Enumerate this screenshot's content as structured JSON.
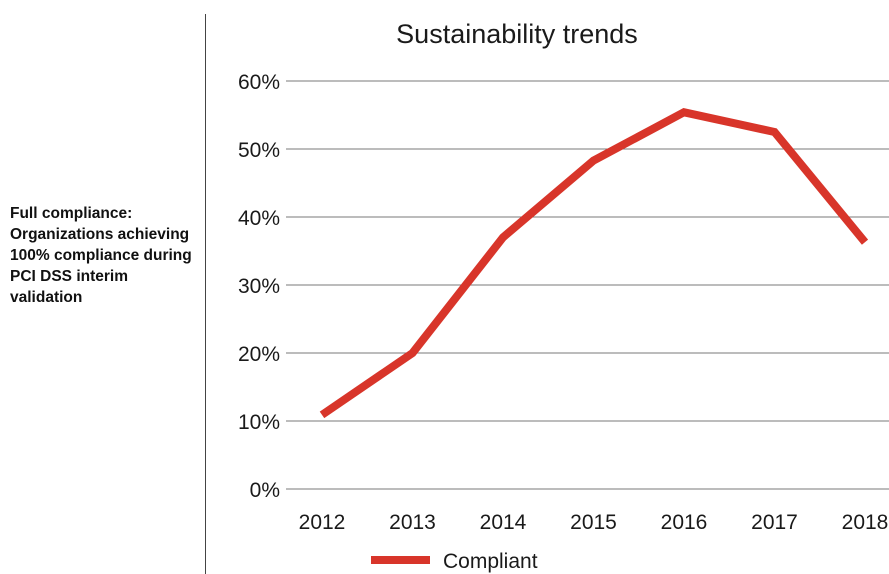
{
  "side_label": "Full compliance: Organizations achieving 100% compliance during PCI DSS interim validation",
  "colors": {
    "series": "#d8352a",
    "grid": "#7a7a7a",
    "text": "#1a1a1a"
  },
  "chart_data": {
    "type": "line",
    "title": "Sustainability trends",
    "xlabel": "",
    "ylabel": "",
    "x": [
      "2012",
      "2013",
      "2014",
      "2015",
      "2016",
      "2017",
      "2018"
    ],
    "ylim": [
      0,
      60
    ],
    "yticks": [
      0,
      10,
      20,
      30,
      40,
      50,
      60
    ],
    "ytick_labels": [
      "0%",
      "10%",
      "20%",
      "30%",
      "40%",
      "50%",
      "60%"
    ],
    "grid": true,
    "legend": "bottom-center",
    "series": [
      {
        "name": "Compliant",
        "values": [
          10.9,
          20,
          37,
          48.3,
          55.4,
          52.5,
          36.3
        ]
      }
    ]
  }
}
